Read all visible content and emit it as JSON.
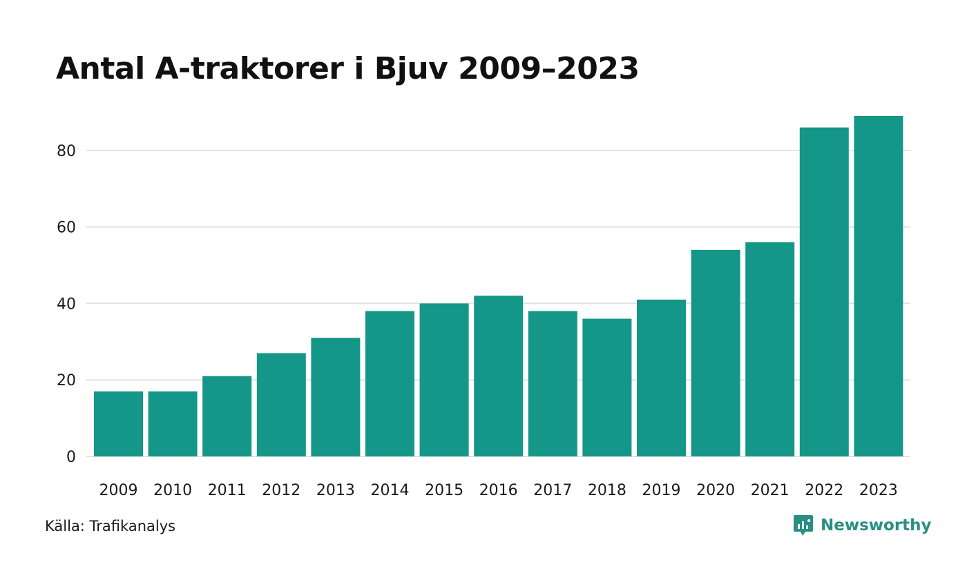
{
  "title": "Antal A-traktorer i Bjuv 2009–2023",
  "source": "Källa: Trafikanalys",
  "brand": {
    "name": "Newsworthy",
    "icon": "newsworthy-logo-icon"
  },
  "colors": {
    "bar": "#149688",
    "grid": "#e2e2e2",
    "brand": "#2a8f83"
  },
  "chart_data": {
    "type": "bar",
    "categories": [
      "2009",
      "2010",
      "2011",
      "2012",
      "2013",
      "2014",
      "2015",
      "2016",
      "2017",
      "2018",
      "2019",
      "2020",
      "2021",
      "2022",
      "2023"
    ],
    "values": [
      17,
      17,
      21,
      27,
      31,
      38,
      40,
      42,
      38,
      36,
      41,
      54,
      56,
      86,
      89
    ],
    "yticks": [
      0,
      20,
      40,
      60,
      80
    ],
    "ylim": [
      0,
      89
    ],
    "title": "Antal A-traktorer i Bjuv 2009–2023",
    "xlabel": "",
    "ylabel": "",
    "grid": true,
    "legend": "none"
  }
}
